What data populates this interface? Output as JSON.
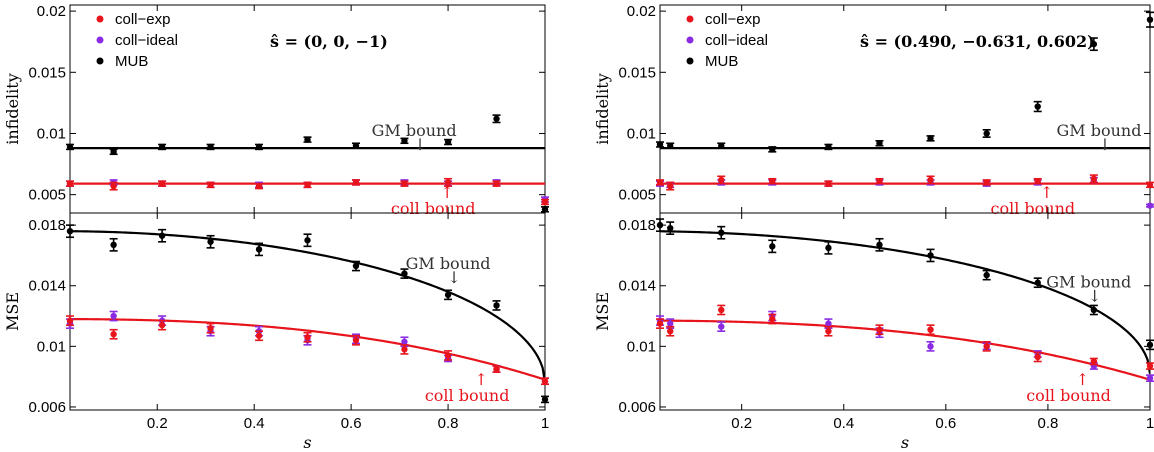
{
  "colors": {
    "coll_exp": "#e8141c",
    "coll_ideal": "#8a2be2",
    "mub": "#000000",
    "gm_line": "#000000",
    "coll_line": "#e8141c"
  },
  "chart_data": [
    {
      "type": "scatter",
      "panel": "left-top",
      "state_label": "ŝ = (0, 0, −1)",
      "ylabel": "infidelity",
      "xlabel": "",
      "xlim": [
        0.02,
        1.0
      ],
      "ylim": [
        0.0035,
        0.0205
      ],
      "yticks": [
        0.005,
        0.01,
        0.015,
        0.02
      ],
      "ytick_labels": [
        "0.005",
        "0.01",
        "0.015",
        "0.02"
      ],
      "xticks": [
        0.2,
        0.4,
        0.6,
        0.8,
        1.0
      ],
      "xtick_labels": [],
      "legend": [
        "coll−exp",
        "coll−ideal",
        "MUB"
      ],
      "annotations": [
        {
          "text": "GM bound",
          "arrow": "↓",
          "x": 0.73,
          "y": 0.0098,
          "color": "grey"
        },
        {
          "text": "coll bound",
          "arrow": "↑",
          "x": 0.79,
          "y": 0.0044,
          "color": "red"
        }
      ],
      "gm_bound": {
        "x": [
          0.02,
          1.0
        ],
        "y": [
          0.0088,
          0.0088
        ]
      },
      "coll_bound": {
        "x": [
          0.02,
          1.0
        ],
        "y": [
          0.0059,
          0.0059
        ]
      },
      "series": [
        {
          "name": "MUB",
          "x": [
            0.02,
            0.11,
            0.21,
            0.31,
            0.41,
            0.51,
            0.61,
            0.71,
            0.8,
            0.9,
            1.0
          ],
          "y": [
            0.0089,
            0.0085,
            0.0089,
            0.0089,
            0.0089,
            0.0095,
            0.009,
            0.0094,
            0.0093,
            0.0112,
            0.0038
          ],
          "err": [
            0.0002,
            0.0002,
            0.0002,
            0.0002,
            0.0002,
            0.0002,
            0.0002,
            0.0002,
            0.0002,
            0.0003,
            0.0002
          ]
        },
        {
          "name": "coll−ideal",
          "x": [
            0.02,
            0.11,
            0.21,
            0.31,
            0.41,
            0.51,
            0.61,
            0.71,
            0.8,
            0.9,
            1.0
          ],
          "y": [
            0.0059,
            0.006,
            0.0059,
            0.0058,
            0.0058,
            0.0058,
            0.006,
            0.006,
            0.0059,
            0.006,
            0.0046
          ],
          "err": [
            0.0002,
            0.0002,
            0.0002,
            0.0002,
            0.0002,
            0.0002,
            0.0002,
            0.0002,
            0.0002,
            0.0002,
            0.0002
          ]
        },
        {
          "name": "coll−exp",
          "x": [
            0.02,
            0.11,
            0.21,
            0.31,
            0.41,
            0.51,
            0.61,
            0.71,
            0.8,
            0.9,
            1.0
          ],
          "y": [
            0.0059,
            0.0057,
            0.0059,
            0.0058,
            0.0057,
            0.0058,
            0.006,
            0.0059,
            0.006,
            0.0059,
            0.0044
          ],
          "err": [
            0.0002,
            0.0003,
            0.0002,
            0.0002,
            0.0002,
            0.0002,
            0.0002,
            0.0002,
            0.0003,
            0.0002,
            0.0002
          ]
        }
      ]
    },
    {
      "type": "scatter",
      "panel": "left-bottom",
      "ylabel": "MSE",
      "xlabel": "s",
      "xlim": [
        0.02,
        1.0
      ],
      "ylim": [
        0.0058,
        0.0188
      ],
      "yticks": [
        0.006,
        0.01,
        0.014,
        0.018
      ],
      "ytick_labels": [
        "0.006",
        "0.01",
        "0.014",
        "0.018"
      ],
      "xticks": [
        0.2,
        0.4,
        0.6,
        0.8,
        1.0
      ],
      "xtick_labels": [
        "0.2",
        "0.4",
        "0.6",
        "0.8",
        "1"
      ],
      "annotations": [
        {
          "text": "GM bound",
          "arrow": "↓",
          "x": 0.8,
          "y": 0.0151,
          "color": "grey"
        },
        {
          "text": "coll bound",
          "arrow": "↑",
          "x": 0.86,
          "y": 0.0072,
          "color": "red"
        }
      ],
      "gm_bound": {
        "formula": "gm",
        "a": 0.0176,
        "b": 0.0076
      },
      "coll_bound": {
        "formula": "coll",
        "a": 0.0118,
        "b": 0.0078
      },
      "series": [
        {
          "name": "MUB",
          "x": [
            0.02,
            0.11,
            0.21,
            0.31,
            0.41,
            0.51,
            0.61,
            0.71,
            0.8,
            0.9,
            1.0
          ],
          "y": [
            0.0176,
            0.0167,
            0.0173,
            0.0169,
            0.0164,
            0.017,
            0.0153,
            0.0148,
            0.0134,
            0.0127,
            0.0065
          ],
          "err": [
            0.0004,
            0.0004,
            0.0004,
            0.0004,
            0.0004,
            0.0004,
            0.0003,
            0.0003,
            0.0003,
            0.0003,
            0.0002
          ]
        },
        {
          "name": "coll−ideal",
          "x": [
            0.02,
            0.11,
            0.21,
            0.31,
            0.41,
            0.51,
            0.61,
            0.71,
            0.8,
            0.9,
            1.0
          ],
          "y": [
            0.0115,
            0.012,
            0.0117,
            0.011,
            0.011,
            0.0104,
            0.0105,
            0.0103,
            0.0092,
            0.0085,
            0.0077
          ],
          "err": [
            0.0003,
            0.0003,
            0.0003,
            0.0003,
            0.0003,
            0.0003,
            0.0003,
            0.0003,
            0.0002,
            0.0002,
            0.0002
          ]
        },
        {
          "name": "coll−exp",
          "x": [
            0.02,
            0.11,
            0.21,
            0.31,
            0.41,
            0.51,
            0.61,
            0.71,
            0.8,
            0.9,
            1.0
          ],
          "y": [
            0.0117,
            0.0108,
            0.0114,
            0.0112,
            0.0107,
            0.0106,
            0.0104,
            0.0098,
            0.0094,
            0.0085,
            0.0077
          ],
          "err": [
            0.0003,
            0.0003,
            0.0003,
            0.0003,
            0.0003,
            0.0003,
            0.0003,
            0.0003,
            0.0003,
            0.0002,
            0.0002
          ]
        }
      ]
    },
    {
      "type": "scatter",
      "panel": "right-top",
      "state_label": "ŝ = (0.490, −0.631, 0.602)",
      "ylabel": "infidelity",
      "xlabel": "",
      "xlim": [
        0.04,
        1.0
      ],
      "ylim": [
        0.0035,
        0.0205
      ],
      "yticks": [
        0.005,
        0.01,
        0.015,
        0.02
      ],
      "ytick_labels": [
        "0.005",
        "0.01",
        "0.015",
        "0.02"
      ],
      "xticks": [
        0.2,
        0.4,
        0.6,
        0.8,
        1.0
      ],
      "xtick_labels": [],
      "legend": [
        "coll−exp",
        "coll−ideal",
        "MUB"
      ],
      "annotations": [
        {
          "text": "GM bound",
          "arrow": "↓",
          "x": 0.9,
          "y": 0.0098,
          "color": "grey"
        },
        {
          "text": "coll bound",
          "arrow": "↑",
          "x": 0.79,
          "y": 0.0044,
          "color": "red"
        }
      ],
      "gm_bound": {
        "x": [
          0.04,
          1.0
        ],
        "y": [
          0.0088,
          0.0088
        ]
      },
      "coll_bound": {
        "x": [
          0.04,
          1.0
        ],
        "y": [
          0.0059,
          0.0059
        ]
      },
      "series": [
        {
          "name": "MUB",
          "x": [
            0.04,
            0.06,
            0.16,
            0.26,
            0.37,
            0.47,
            0.57,
            0.68,
            0.78,
            0.89,
            1.0
          ],
          "y": [
            0.0091,
            0.009,
            0.009,
            0.0087,
            0.0089,
            0.0092,
            0.0096,
            0.01,
            0.0122,
            0.0173,
            0.0193
          ],
          "err": [
            0.0002,
            0.0002,
            0.0002,
            0.0002,
            0.0002,
            0.0002,
            0.0002,
            0.0003,
            0.0004,
            0.0005,
            0.0006
          ]
        },
        {
          "name": "coll−ideal",
          "x": [
            0.04,
            0.06,
            0.16,
            0.26,
            0.37,
            0.47,
            0.57,
            0.68,
            0.78,
            0.89,
            1.0
          ],
          "y": [
            0.0059,
            0.0058,
            0.006,
            0.006,
            0.0059,
            0.006,
            0.006,
            0.0059,
            0.006,
            0.0062,
            0.0041
          ],
          "err": [
            0.0002,
            0.0002,
            0.0002,
            0.0002,
            0.0002,
            0.0002,
            0.0002,
            0.0002,
            0.0002,
            0.0002,
            0.0001
          ]
        },
        {
          "name": "coll−exp",
          "x": [
            0.04,
            0.06,
            0.16,
            0.26,
            0.37,
            0.47,
            0.57,
            0.68,
            0.78,
            0.89,
            1.0
          ],
          "y": [
            0.006,
            0.0057,
            0.0062,
            0.0061,
            0.0059,
            0.0061,
            0.0062,
            0.006,
            0.0061,
            0.0063,
            0.0058
          ],
          "err": [
            0.0002,
            0.0003,
            0.0003,
            0.0002,
            0.0002,
            0.0002,
            0.0003,
            0.0002,
            0.0002,
            0.0003,
            0.0002
          ]
        }
      ]
    },
    {
      "type": "scatter",
      "panel": "right-bottom",
      "ylabel": "MSE",
      "xlabel": "s",
      "xlim": [
        0.04,
        1.0
      ],
      "ylim": [
        0.0058,
        0.0188
      ],
      "yticks": [
        0.006,
        0.01,
        0.014,
        0.018
      ],
      "ytick_labels": [
        "0.006",
        "0.01",
        "0.014",
        "0.018"
      ],
      "xticks": [
        0.2,
        0.4,
        0.6,
        0.8,
        1.0
      ],
      "xtick_labels": [
        "0.2",
        "0.4",
        "0.6",
        "0.8",
        "1"
      ],
      "annotations": [
        {
          "text": "GM bound",
          "arrow": "↓",
          "x": 0.88,
          "y": 0.0139,
          "color": "grey"
        },
        {
          "text": "coll bound",
          "arrow": "↑",
          "x": 0.86,
          "y": 0.0072,
          "color": "red"
        }
      ],
      "gm_bound": {
        "formula": "gm",
        "a": 0.0176,
        "b": 0.0082
      },
      "coll_bound": {
        "formula": "coll",
        "a": 0.0117,
        "b": 0.0078
      },
      "series": [
        {
          "name": "MUB",
          "x": [
            0.04,
            0.06,
            0.16,
            0.26,
            0.37,
            0.47,
            0.57,
            0.68,
            0.78,
            0.89,
            1.0
          ],
          "y": [
            0.018,
            0.0178,
            0.0175,
            0.0166,
            0.0165,
            0.0167,
            0.016,
            0.0147,
            0.0142,
            0.0124,
            0.0101
          ],
          "err": [
            0.0004,
            0.0004,
            0.0004,
            0.0004,
            0.0004,
            0.0004,
            0.0004,
            0.0003,
            0.0003,
            0.0003,
            0.0003
          ]
        },
        {
          "name": "coll−ideal",
          "x": [
            0.04,
            0.06,
            0.16,
            0.26,
            0.37,
            0.47,
            0.57,
            0.68,
            0.78,
            0.89,
            1.0
          ],
          "y": [
            0.0117,
            0.0115,
            0.0113,
            0.012,
            0.0115,
            0.0109,
            0.01,
            0.01,
            0.0095,
            0.0087,
            0.0079
          ],
          "err": [
            0.0003,
            0.0003,
            0.0003,
            0.0003,
            0.0003,
            0.0003,
            0.0003,
            0.0002,
            0.0002,
            0.0002,
            0.0002
          ]
        },
        {
          "name": "coll−exp",
          "x": [
            0.04,
            0.06,
            0.16,
            0.26,
            0.37,
            0.47,
            0.57,
            0.68,
            0.78,
            0.89,
            1.0
          ],
          "y": [
            0.0115,
            0.011,
            0.0124,
            0.0118,
            0.011,
            0.0111,
            0.0111,
            0.01,
            0.0093,
            0.009,
            0.0087
          ],
          "err": [
            0.0003,
            0.0003,
            0.0003,
            0.0003,
            0.0003,
            0.0003,
            0.0003,
            0.0003,
            0.0003,
            0.0002,
            0.0002
          ]
        }
      ]
    }
  ]
}
